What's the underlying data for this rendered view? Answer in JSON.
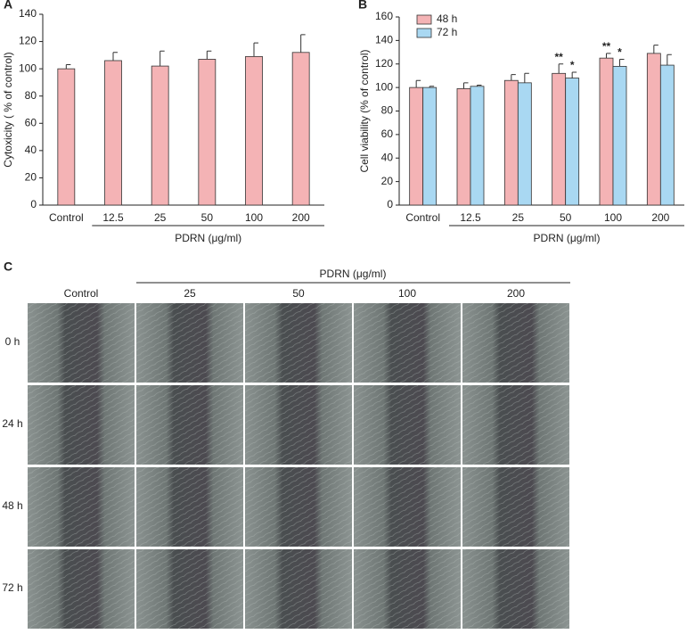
{
  "chart_data": [
    {
      "type": "bar",
      "title": "A",
      "ylabel": "Cytoxicity ( % of control)",
      "categories": [
        "Control",
        "12.5",
        "25",
        "50",
        "100",
        "200"
      ],
      "values": [
        100,
        106,
        102,
        107,
        109,
        112
      ],
      "errors": [
        3,
        6,
        11,
        6,
        10,
        13
      ],
      "color": "#f4b3b5",
      "x_group_label": "PDRN (μg/ml)",
      "ylim": [
        0,
        140
      ],
      "yticks": [
        0,
        20,
        40,
        60,
        80,
        100,
        120,
        140
      ]
    },
    {
      "type": "bar",
      "title": "B",
      "ylabel": "Cell viability (% of control)",
      "categories": [
        "Control",
        "12.5",
        "25",
        "50",
        "100",
        "200"
      ],
      "series": [
        {
          "name": "48 h",
          "color": "#f4b3b5",
          "values": [
            100,
            99,
            106,
            112,
            125,
            129
          ],
          "errors": [
            6,
            5,
            5,
            8,
            4,
            7
          ],
          "significance": [
            null,
            null,
            null,
            "**",
            "**",
            null
          ]
        },
        {
          "name": "72 h",
          "color": "#a9d8f2",
          "values": [
            100,
            101,
            104,
            108,
            118,
            119
          ],
          "errors": [
            1,
            1,
            8,
            5,
            6,
            9
          ],
          "significance": [
            null,
            null,
            null,
            "*",
            "*",
            null
          ]
        }
      ],
      "x_group_label": "PDRN (μg/ml)",
      "legend": "top-left",
      "ylim": [
        0,
        160
      ],
      "yticks": [
        0,
        20,
        40,
        60,
        80,
        100,
        120,
        140,
        160
      ]
    }
  ],
  "panel_c": {
    "panel_label": "C",
    "group_label": "PDRN (μg/ml)",
    "columns": [
      "Control",
      "25",
      "50",
      "100",
      "200"
    ],
    "rows": [
      "0 h",
      "24 h",
      "48 h",
      "72 h"
    ]
  }
}
